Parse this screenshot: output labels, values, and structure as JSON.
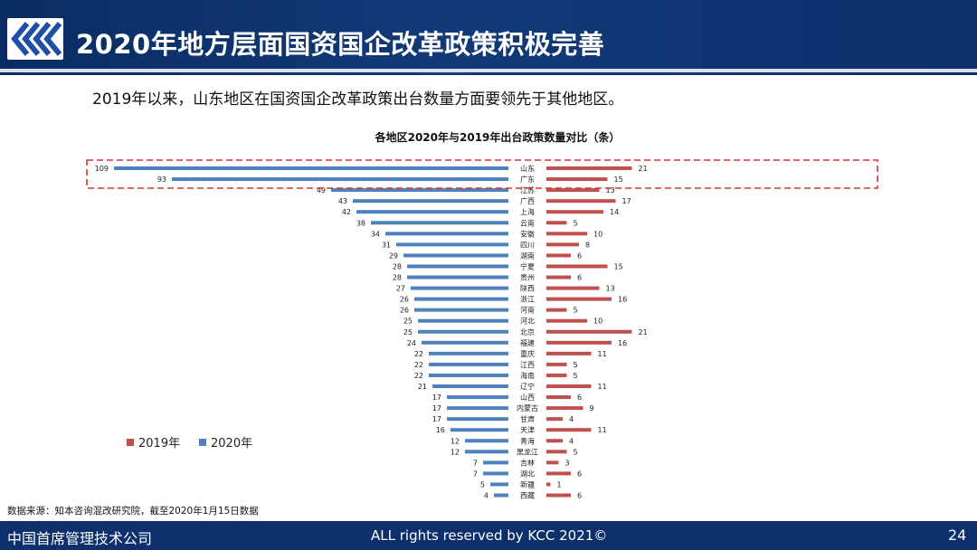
{
  "header": {
    "title": "2020年地方层面国资国企改革政策积极完善"
  },
  "subtitle": "2019年以来，山东地区在国资国企改革政策出台数量方面要领先于其他地区。",
  "source": "数据来源：知本咨询混改研究院，截至2020年1月15日数据",
  "footer": {
    "company": "中国首席管理技术公司",
    "rights": "ALL rights reserved by KCC 2021©",
    "page_number": "24"
  },
  "colors": {
    "header_bg": "#0d2f6b",
    "series_2019": "#c0504d",
    "series_2020": "#4f81bd",
    "highlight": "#e03030",
    "logo": "#1f4fa8"
  },
  "chart_data": {
    "type": "bar",
    "orientation": "horizontal-butterfly",
    "title": "各地区2020年与2019年出台政策数量对比（条）",
    "categories": [
      "山东",
      "广东",
      "江苏",
      "广西",
      "上海",
      "云南",
      "安徽",
      "四川",
      "湖南",
      "宁夏",
      "贵州",
      "陕西",
      "浙江",
      "河南",
      "河北",
      "北京",
      "福建",
      "重庆",
      "江西",
      "海南",
      "辽宁",
      "山西",
      "内蒙古",
      "甘肃",
      "天津",
      "青海",
      "黑龙江",
      "吉林",
      "湖北",
      "新疆",
      "西藏"
    ],
    "series": [
      {
        "name": "2020年",
        "side": "left",
        "values": [
          109,
          93,
          49,
          43,
          42,
          38,
          34,
          31,
          29,
          28,
          28,
          27,
          26,
          26,
          25,
          25,
          24,
          22,
          22,
          22,
          21,
          17,
          17,
          17,
          16,
          12,
          12,
          7,
          7,
          5,
          4
        ]
      },
      {
        "name": "2019年",
        "side": "right",
        "values": [
          21,
          15,
          13,
          17,
          14,
          5,
          10,
          8,
          6,
          15,
          6,
          13,
          16,
          5,
          10,
          21,
          16,
          11,
          5,
          5,
          11,
          6,
          9,
          4,
          11,
          4,
          5,
          3,
          6,
          1,
          6
        ]
      }
    ],
    "legend": {
      "placement": "bottom-left",
      "entries": [
        "2019年",
        "2020年"
      ]
    },
    "highlight_categories": [
      "山东",
      "广东"
    ],
    "grid": false
  }
}
